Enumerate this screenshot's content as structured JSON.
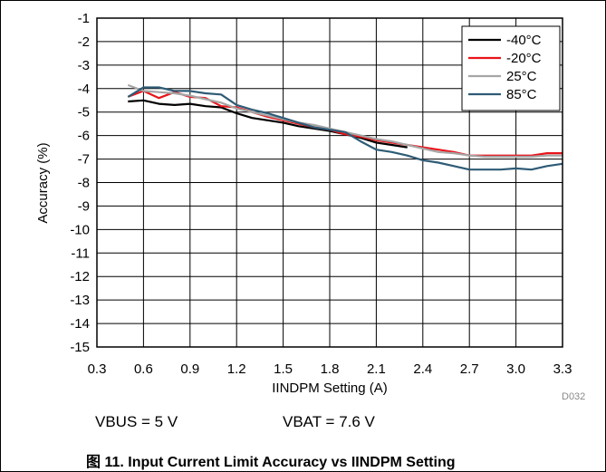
{
  "chart_data": {
    "type": "line",
    "title": "",
    "xlabel": "IINDPM Setting (A)",
    "ylabel": "Accuracy (%)",
    "xlim": [
      0.3,
      3.3
    ],
    "ylim": [
      -15,
      -1
    ],
    "x_ticks": [
      "0.3",
      "0.6",
      "0.9",
      "1.2",
      "1.5",
      "1.8",
      "2.1",
      "2.4",
      "2.7",
      "3.0",
      "3.3"
    ],
    "x_tick_values": [
      0.3,
      0.6,
      0.9,
      1.2,
      1.5,
      1.8,
      2.1,
      2.4,
      2.7,
      3.0,
      3.3
    ],
    "y_ticks": [
      "-1",
      "-2",
      "-3",
      "-4",
      "-5",
      "-6",
      "-7",
      "-8",
      "-9",
      "-10",
      "-11",
      "-12",
      "-13",
      "-14",
      "-15"
    ],
    "y_tick_values": [
      -1,
      -2,
      -3,
      -4,
      -5,
      -6,
      -7,
      -8,
      -9,
      -10,
      -11,
      -12,
      -13,
      -14,
      -15
    ],
    "grid": true,
    "legend_position": "top-right",
    "series": [
      {
        "name": "-40°C",
        "color": "#000000",
        "x": [
          0.5,
          0.6,
          0.7,
          0.8,
          0.9,
          1.0,
          1.1,
          1.2,
          1.3,
          1.4,
          1.5,
          1.6,
          1.7,
          1.8,
          1.9,
          2.0,
          2.1,
          2.2,
          2.3
        ],
        "y": [
          -4.55,
          -4.5,
          -4.65,
          -4.7,
          -4.65,
          -4.75,
          -4.8,
          -5.05,
          -5.25,
          -5.35,
          -5.45,
          -5.6,
          -5.7,
          -5.8,
          -5.95,
          -6.1,
          -6.3,
          -6.4,
          -6.5
        ]
      },
      {
        "name": "-20°C",
        "color": "#e8141a",
        "x": [
          0.5,
          0.6,
          0.7,
          0.8,
          0.9,
          1.0,
          1.1,
          1.2,
          1.3,
          1.4,
          1.5,
          1.6,
          1.7,
          1.8,
          1.9,
          2.0,
          2.1,
          2.2,
          2.3,
          2.4,
          2.5,
          2.6,
          2.7,
          2.8,
          2.9,
          3.0,
          3.1,
          3.2,
          3.3
        ],
        "y": [
          -4.35,
          -4.1,
          -4.4,
          -4.15,
          -4.35,
          -4.4,
          -4.75,
          -4.8,
          -5.0,
          -5.2,
          -5.35,
          -5.5,
          -5.65,
          -5.75,
          -5.95,
          -6.05,
          -6.2,
          -6.3,
          -6.4,
          -6.5,
          -6.6,
          -6.7,
          -6.85,
          -6.85,
          -6.85,
          -6.85,
          -6.85,
          -6.75,
          -6.75
        ]
      },
      {
        "name": "25°C",
        "color": "#a6a6a6",
        "x": [
          0.5,
          0.6,
          0.7,
          0.8,
          0.9,
          1.0,
          1.1,
          1.2,
          1.3,
          1.4,
          1.5,
          1.6,
          1.7,
          1.8,
          1.9,
          2.0,
          2.1,
          2.2,
          2.3,
          2.4,
          2.5,
          2.6,
          2.7,
          2.8,
          2.9,
          3.0,
          3.1,
          3.2,
          3.3
        ],
        "y": [
          -3.85,
          -4.1,
          -4.15,
          -4.2,
          -4.3,
          -4.45,
          -4.6,
          -4.85,
          -5.0,
          -5.15,
          -5.3,
          -5.45,
          -5.55,
          -5.7,
          -5.85,
          -6.0,
          -6.15,
          -6.25,
          -6.4,
          -6.55,
          -6.7,
          -6.75,
          -6.85,
          -6.9,
          -6.9,
          -6.9,
          -6.9,
          -6.85,
          -6.85
        ]
      },
      {
        "name": "85°C",
        "color": "#2e5b75",
        "x": [
          0.5,
          0.6,
          0.7,
          0.8,
          0.9,
          1.0,
          1.1,
          1.2,
          1.3,
          1.4,
          1.5,
          1.6,
          1.7,
          1.8,
          1.9,
          2.0,
          2.1,
          2.2,
          2.3,
          2.4,
          2.5,
          2.6,
          2.7,
          2.8,
          2.9,
          3.0,
          3.1,
          3.2,
          3.3
        ],
        "y": [
          -4.35,
          -3.95,
          -3.95,
          -4.1,
          -4.1,
          -4.2,
          -4.25,
          -4.7,
          -4.9,
          -5.05,
          -5.25,
          -5.45,
          -5.65,
          -5.75,
          -5.85,
          -6.25,
          -6.6,
          -6.7,
          -6.85,
          -7.05,
          -7.15,
          -7.3,
          -7.45,
          -7.45,
          -7.45,
          -7.4,
          -7.45,
          -7.3,
          -7.2
        ]
      }
    ]
  },
  "conditions": {
    "vbus": "VBUS = 5 V",
    "vbat": "VBAT = 7.6 V"
  },
  "figure_id": "D032",
  "caption": "图 11. Input Current Limit Accuracy vs IINDPM Setting"
}
